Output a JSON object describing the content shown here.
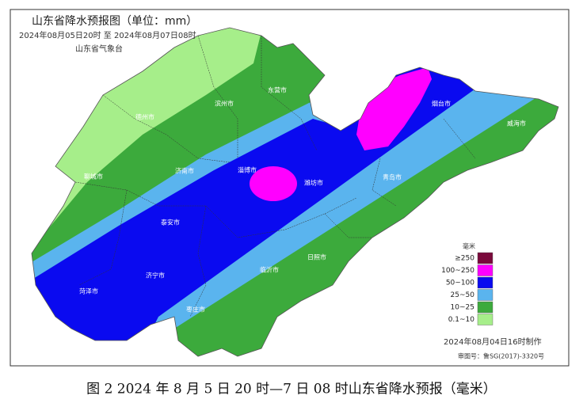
{
  "header": {
    "title": "山东省降水预报图（单位：mm）",
    "period": "2024年08月05日20时  至  2024年08月07日08时",
    "issuer": "山东省气象台"
  },
  "cities": [
    "德州市",
    "滨州市",
    "东营市",
    "聊城市",
    "济南市",
    "淄博市",
    "潍坊市",
    "烟台市",
    "威海市",
    "青岛市",
    "泰安市",
    "济宁市",
    "临沂市",
    "日照市",
    "菏泽市",
    "枣庄市"
  ],
  "legend": {
    "title": "毫米",
    "items": [
      {
        "label": "≥250",
        "color": "#7a0a3c"
      },
      {
        "label": "100~250",
        "color": "#ff00ff"
      },
      {
        "label": "50~100",
        "color": "#0a0af0"
      },
      {
        "label": "25~50",
        "color": "#5ab4ee"
      },
      {
        "label": "10~25",
        "color": "#3caa3c"
      },
      {
        "label": "0.1~10",
        "color": "#a6ee8a"
      }
    ]
  },
  "footer": {
    "made": "2024年08月04日16时制作",
    "approval": "审图号：鲁SG(2017)-3320号"
  },
  "caption": "图 2 2024 年 8 月 5 日 20 时—7 日 08 时山东省降水预报（毫米）"
}
